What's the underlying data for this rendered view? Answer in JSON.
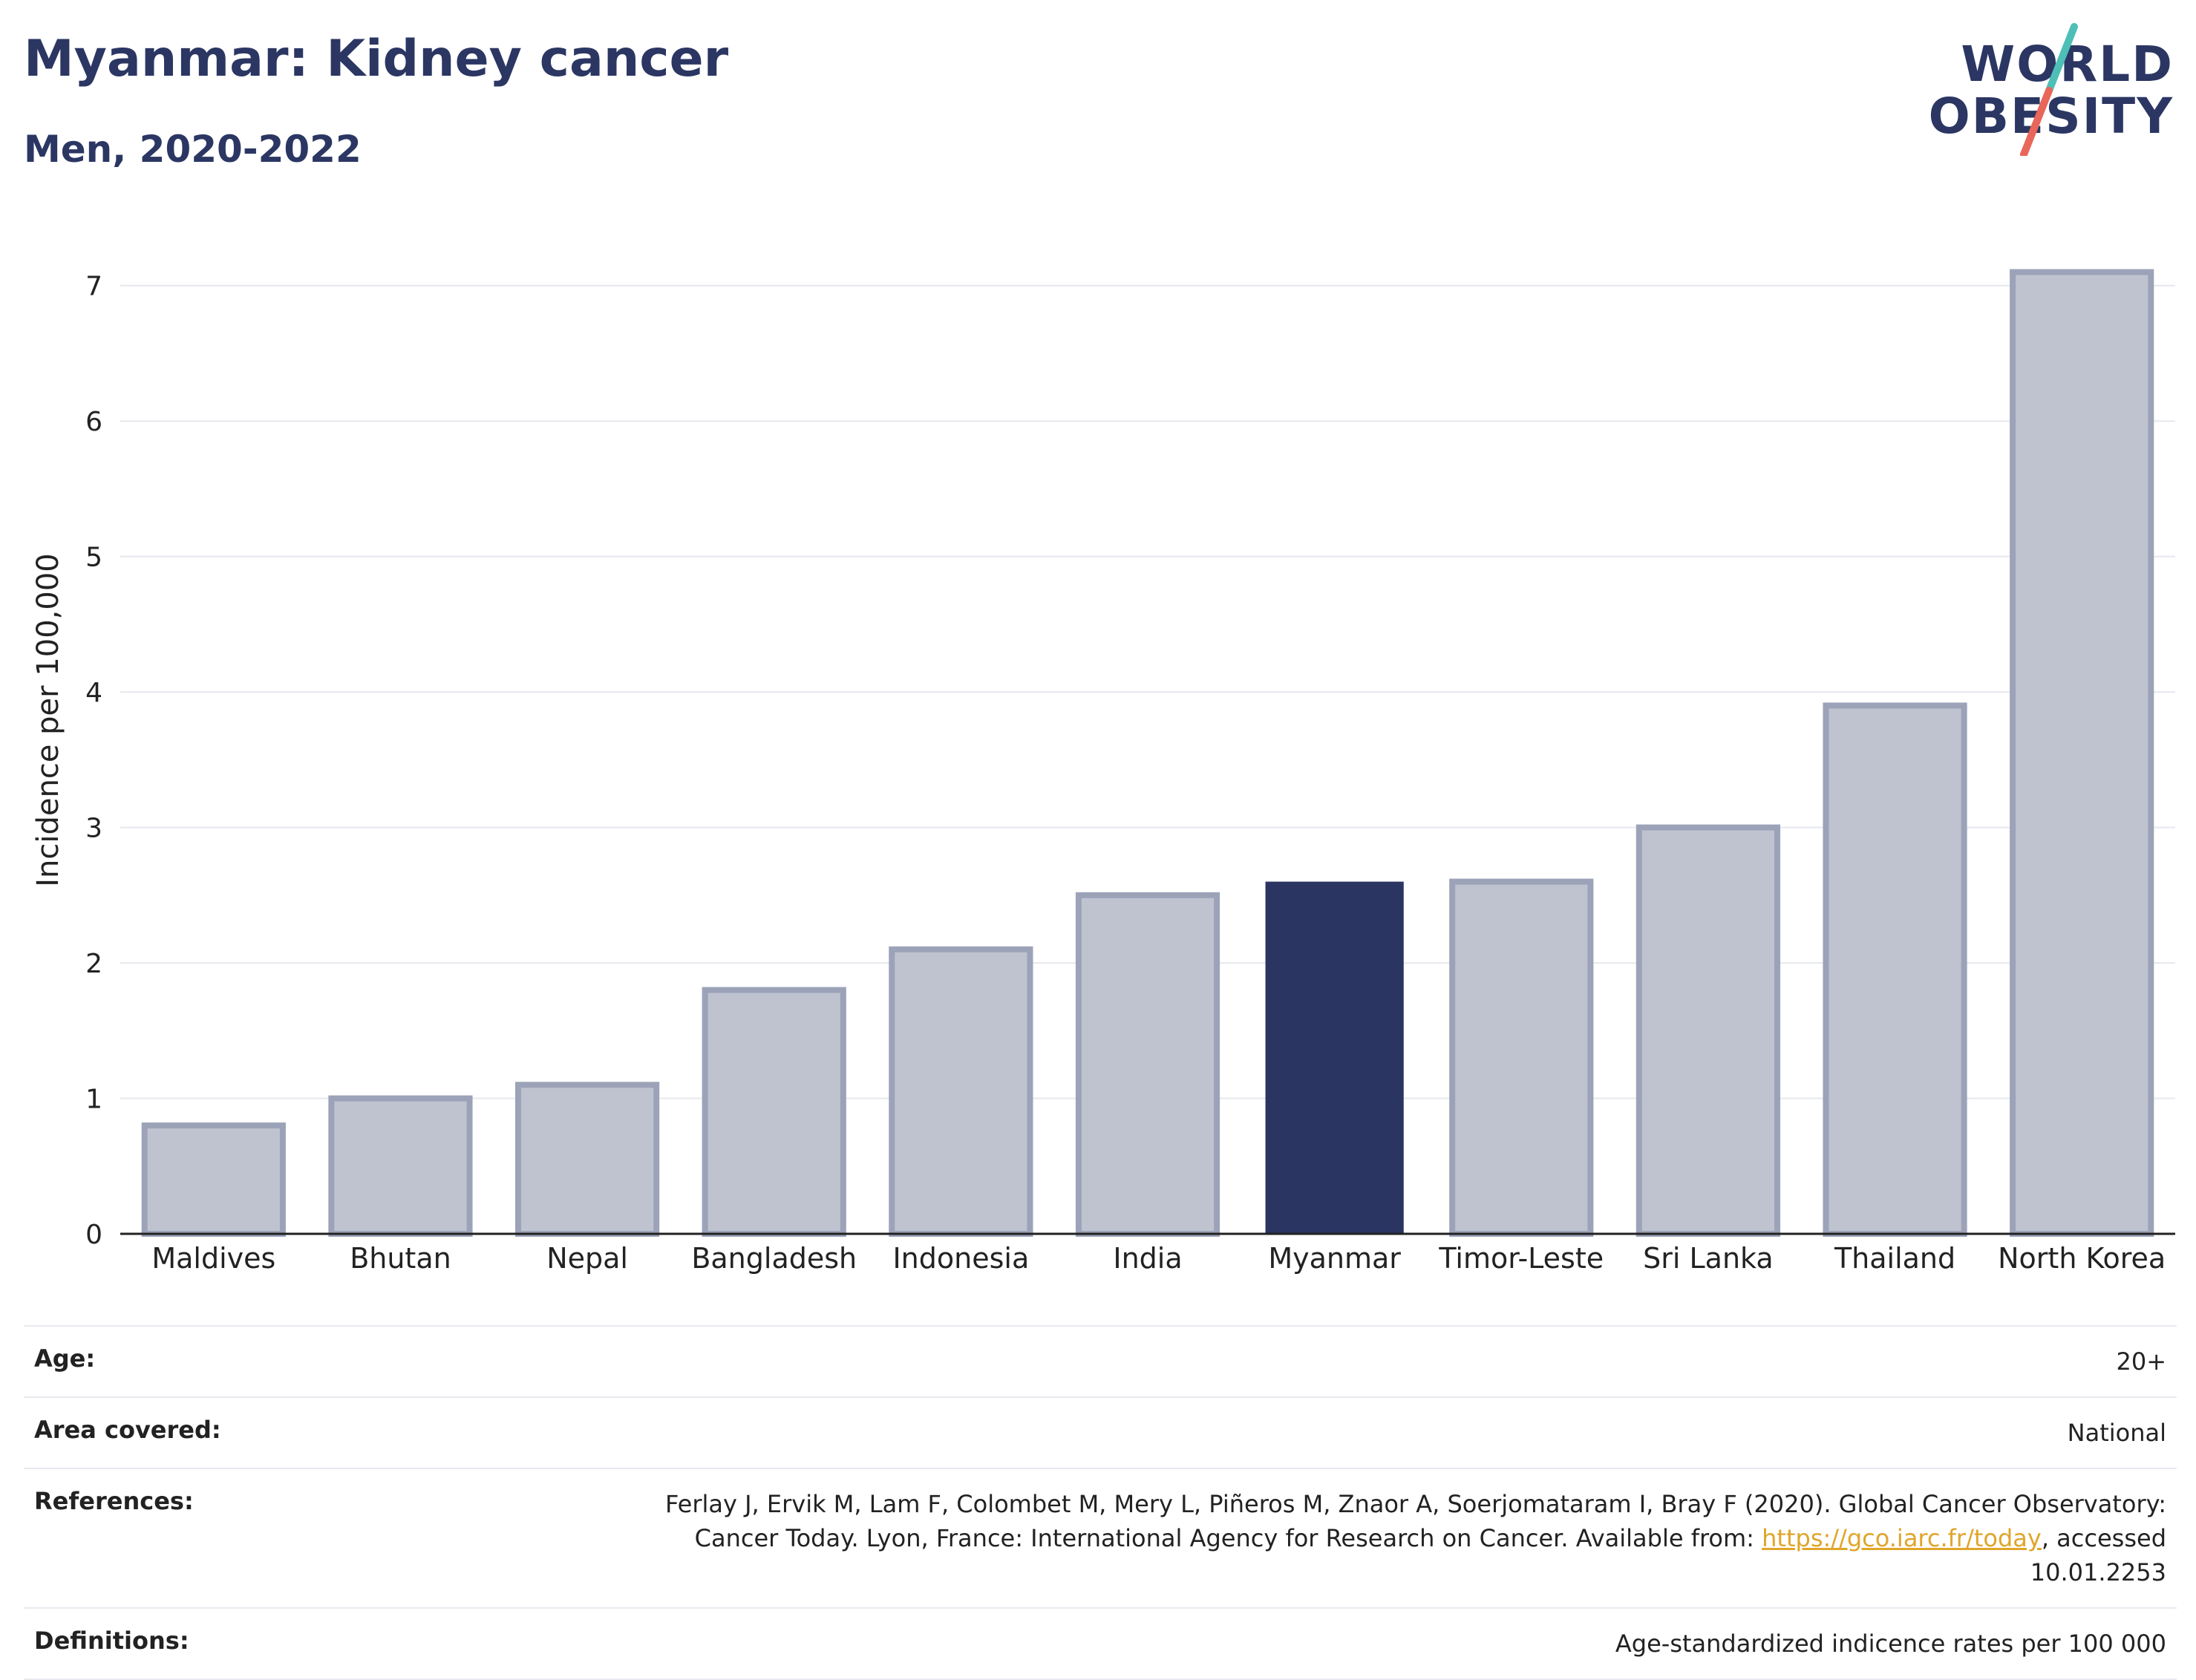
{
  "header": {
    "title": "Myanmar: Kidney cancer",
    "subtitle": "Men, 2020-2022"
  },
  "logo": {
    "line1": "WORLD",
    "line2": "OBESITY",
    "slash_colors": [
      "#4dbfb6",
      "#e8665a"
    ]
  },
  "chart_data": {
    "type": "bar",
    "title": "Myanmar: Kidney cancer",
    "subtitle": "Men, 2020-2022",
    "ylabel": "Incidence per 100,000",
    "xlabel": "",
    "ylim": [
      0,
      7.3
    ],
    "yticks": [
      0,
      1,
      2,
      3,
      4,
      5,
      6,
      7
    ],
    "grid": true,
    "highlight": "Myanmar",
    "colors": {
      "bar": "#bfc3d0",
      "bar_edge": "#9ca3b8",
      "highlight": "#2a3562",
      "axis": "#222222",
      "grid": "#e6e8ee"
    },
    "categories": [
      "Maldives",
      "Bhutan",
      "Nepal",
      "Bangladesh",
      "Indonesia",
      "India",
      "Myanmar",
      "Timor-Leste",
      "Sri Lanka",
      "Thailand",
      "North Korea"
    ],
    "values": [
      0.8,
      1.0,
      1.1,
      1.8,
      2.1,
      2.5,
      2.6,
      2.6,
      3.0,
      3.9,
      7.1
    ]
  },
  "meta": {
    "age_label": "Age:",
    "age_value": "20+",
    "area_label": "Area covered:",
    "area_value": "National",
    "references_label": "References:",
    "references_text_1": "Ferlay J, Ervik M, Lam F, Colombet M, Mery L, Piñeros M, Znaor A, Soerjomataram I, Bray F (2020). Global Cancer Observatory: Cancer Today. Lyon, France: International Agency for Research on Cancer. Available from: ",
    "references_link": "https://gco.iarc.fr/today",
    "references_text_2": ", accessed 10.01.2253",
    "definitions_label": "Definitions:",
    "definitions_value": "Age-standardized indicence rates per 100 000"
  }
}
